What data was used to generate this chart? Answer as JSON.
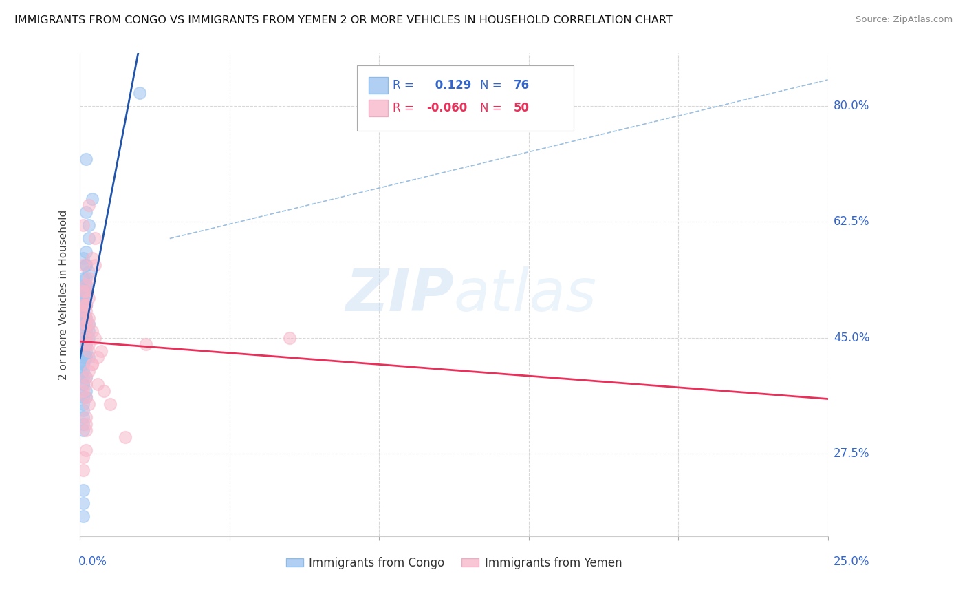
{
  "title": "IMMIGRANTS FROM CONGO VS IMMIGRANTS FROM YEMEN 2 OR MORE VEHICLES IN HOUSEHOLD CORRELATION CHART",
  "source": "Source: ZipAtlas.com",
  "ylabel": "2 or more Vehicles in Household",
  "xlim": [
    0.0,
    0.25
  ],
  "ylim": [
    0.15,
    0.88
  ],
  "ytick_labels": [
    "27.5%",
    "45.0%",
    "62.5%",
    "80.0%"
  ],
  "ytick_values": [
    0.275,
    0.45,
    0.625,
    0.8
  ],
  "background_color": "#ffffff",
  "grid_color": "#d8d8d8",
  "legend_R_congo": " 0.129",
  "legend_N_congo": "76",
  "legend_R_yemen": "-0.060",
  "legend_N_yemen": "50",
  "congo_color": "#9ec4f0",
  "yemen_color": "#f7b8cb",
  "congo_line_color": "#2255aa",
  "yemen_line_color": "#e8305a",
  "trendline_color": "#9bbfdf",
  "congo_scatter_x": [
    0.002,
    0.004,
    0.002,
    0.003,
    0.003,
    0.002,
    0.001,
    0.002,
    0.002,
    0.003,
    0.002,
    0.001,
    0.002,
    0.002,
    0.001,
    0.002,
    0.002,
    0.001,
    0.001,
    0.001,
    0.002,
    0.002,
    0.001,
    0.002,
    0.001,
    0.001,
    0.001,
    0.001,
    0.001,
    0.001,
    0.002,
    0.001,
    0.002,
    0.001,
    0.003,
    0.003,
    0.002,
    0.001,
    0.003,
    0.002,
    0.001,
    0.001,
    0.001,
    0.002,
    0.002,
    0.001,
    0.001,
    0.002,
    0.001,
    0.001,
    0.003,
    0.002,
    0.002,
    0.001,
    0.001,
    0.001,
    0.001,
    0.001,
    0.001,
    0.002,
    0.001,
    0.001,
    0.001,
    0.002,
    0.002,
    0.001,
    0.001,
    0.001,
    0.001,
    0.001,
    0.001,
    0.001,
    0.02,
    0.001,
    0.001,
    0.002
  ],
  "congo_scatter_y": [
    0.72,
    0.66,
    0.64,
    0.62,
    0.6,
    0.58,
    0.57,
    0.56,
    0.56,
    0.55,
    0.54,
    0.54,
    0.53,
    0.53,
    0.52,
    0.52,
    0.52,
    0.51,
    0.51,
    0.51,
    0.5,
    0.5,
    0.5,
    0.5,
    0.49,
    0.49,
    0.49,
    0.48,
    0.48,
    0.48,
    0.47,
    0.47,
    0.47,
    0.47,
    0.47,
    0.46,
    0.46,
    0.46,
    0.45,
    0.45,
    0.45,
    0.45,
    0.44,
    0.44,
    0.44,
    0.44,
    0.43,
    0.43,
    0.43,
    0.43,
    0.42,
    0.42,
    0.42,
    0.42,
    0.41,
    0.41,
    0.41,
    0.4,
    0.4,
    0.39,
    0.39,
    0.38,
    0.38,
    0.37,
    0.36,
    0.36,
    0.35,
    0.34,
    0.33,
    0.32,
    0.31,
    0.2,
    0.82,
    0.22,
    0.18,
    0.48
  ],
  "yemen_scatter_x": [
    0.001,
    0.003,
    0.001,
    0.005,
    0.001,
    0.003,
    0.002,
    0.002,
    0.001,
    0.003,
    0.002,
    0.002,
    0.001,
    0.002,
    0.001,
    0.002,
    0.003,
    0.004,
    0.002,
    0.003,
    0.002,
    0.004,
    0.005,
    0.002,
    0.005,
    0.002,
    0.002,
    0.003,
    0.007,
    0.003,
    0.006,
    0.004,
    0.004,
    0.006,
    0.008,
    0.01,
    0.015,
    0.022,
    0.003,
    0.002,
    0.002,
    0.001,
    0.002,
    0.003,
    0.002,
    0.002,
    0.002,
    0.07,
    0.001,
    0.002
  ],
  "yemen_scatter_y": [
    0.25,
    0.65,
    0.62,
    0.6,
    0.56,
    0.54,
    0.53,
    0.52,
    0.52,
    0.51,
    0.5,
    0.5,
    0.5,
    0.49,
    0.49,
    0.48,
    0.48,
    0.57,
    0.47,
    0.47,
    0.47,
    0.46,
    0.56,
    0.46,
    0.45,
    0.45,
    0.44,
    0.44,
    0.43,
    0.43,
    0.42,
    0.41,
    0.41,
    0.38,
    0.37,
    0.35,
    0.3,
    0.44,
    0.4,
    0.39,
    0.38,
    0.37,
    0.36,
    0.35,
    0.33,
    0.32,
    0.31,
    0.45,
    0.27,
    0.28
  ]
}
